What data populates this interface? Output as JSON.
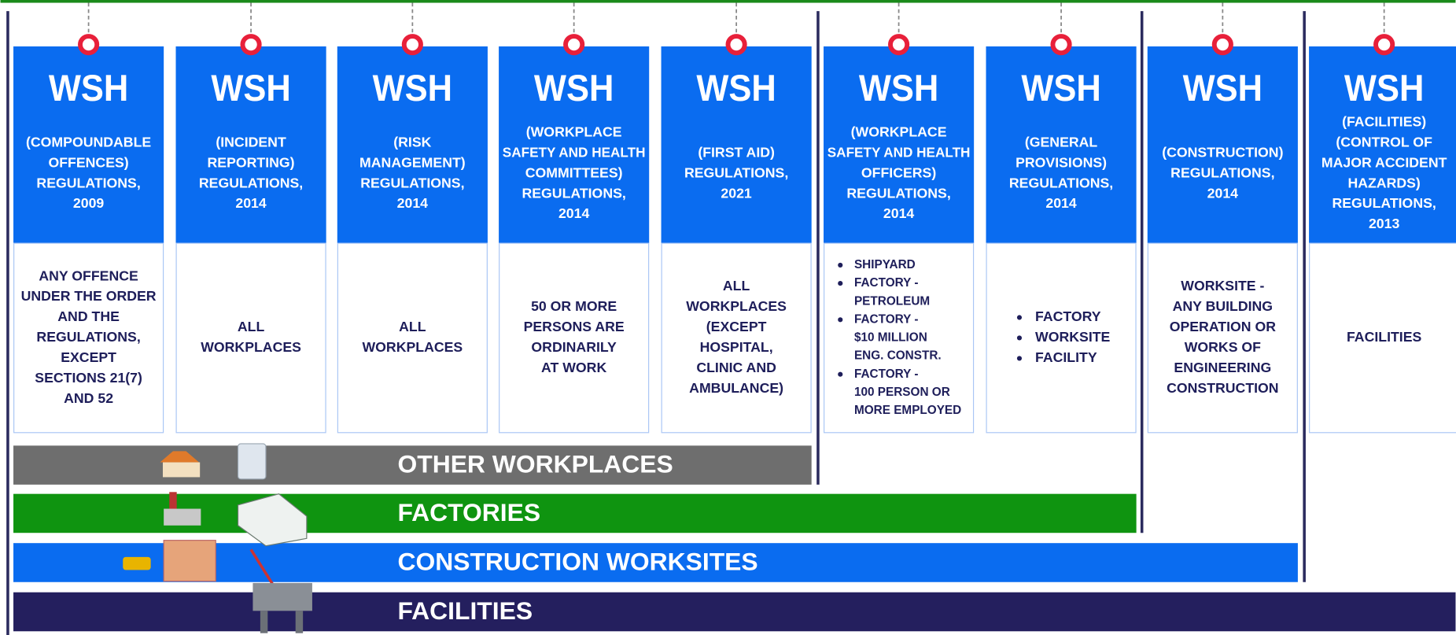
{
  "columns": [
    {
      "title": "WSH",
      "name": [
        "(COMPOUNDABLE",
        "OFFENCES)",
        "REGULATIONS,",
        "2009"
      ],
      "scope": [
        "ANY OFFENCE",
        "UNDER THE ORDER",
        "AND THE",
        "REGULATIONS,",
        "EXCEPT",
        "SECTIONS 21(7)",
        "AND 52"
      ]
    },
    {
      "title": "WSH",
      "name": [
        "(INCIDENT",
        "REPORTING)",
        "REGULATIONS,",
        "2014"
      ],
      "scope": [
        "ALL",
        "WORKPLACES"
      ]
    },
    {
      "title": "WSH",
      "name": [
        "(RISK",
        "MANAGEMENT)",
        "REGULATIONS,",
        "2014"
      ],
      "scope": [
        "ALL",
        "WORKPLACES"
      ]
    },
    {
      "title": "WSH",
      "name": [
        "(WORKPLACE",
        "SAFETY AND HEALTH",
        "COMMITTEES)",
        "REGULATIONS,",
        "2014"
      ],
      "scope": [
        "50 OR MORE",
        "PERSONS ARE",
        "ORDINARILY",
        "AT WORK"
      ]
    },
    {
      "title": "WSH",
      "name": [
        "(FIRST AID)",
        "REGULATIONS,",
        "2021"
      ],
      "scope": [
        "ALL",
        "WORKPLACES",
        "(EXCEPT",
        "HOSPITAL,",
        "CLINIC AND",
        "AMBULANCE)"
      ]
    },
    {
      "title": "WSH",
      "name": [
        "(WORKPLACE",
        "SAFETY AND HEALTH",
        "OFFICERS)",
        "REGULATIONS,",
        "2014"
      ],
      "bullets": [
        [
          "SHIPYARD"
        ],
        [
          "FACTORY -",
          "PETROLEUM"
        ],
        [
          "FACTORY -",
          "$10 MILLION",
          "ENG. CONSTR."
        ],
        [
          "FACTORY -",
          "100 PERSON OR",
          "MORE EMPLOYED"
        ]
      ]
    },
    {
      "title": "WSH",
      "name": [
        "(GENERAL",
        "PROVISIONS)",
        "REGULATIONS,",
        "2014"
      ],
      "bullets": [
        [
          "FACTORY"
        ],
        [
          "WORKSITE"
        ],
        [
          "FACILITY"
        ]
      ]
    },
    {
      "title": "WSH",
      "name": [
        "(CONSTRUCTION)",
        "REGULATIONS,",
        "2014"
      ],
      "scope": [
        "WORKSITE -",
        "ANY BUILDING",
        "OPERATION OR",
        "WORKS OF",
        "ENGINEERING",
        "CONSTRUCTION"
      ]
    },
    {
      "title": "WSH",
      "name": [
        "(FACILITIES)",
        "(CONTROL OF",
        "MAJOR ACCIDENT",
        "HAZARDS)",
        "REGULATIONS,",
        "2013"
      ],
      "scope": [
        "FACILITIES"
      ]
    }
  ],
  "bands": [
    "OTHER WORKPLACES",
    "FACTORIES",
    "CONSTRUCTION WORKSITES",
    "FACILITIES"
  ]
}
